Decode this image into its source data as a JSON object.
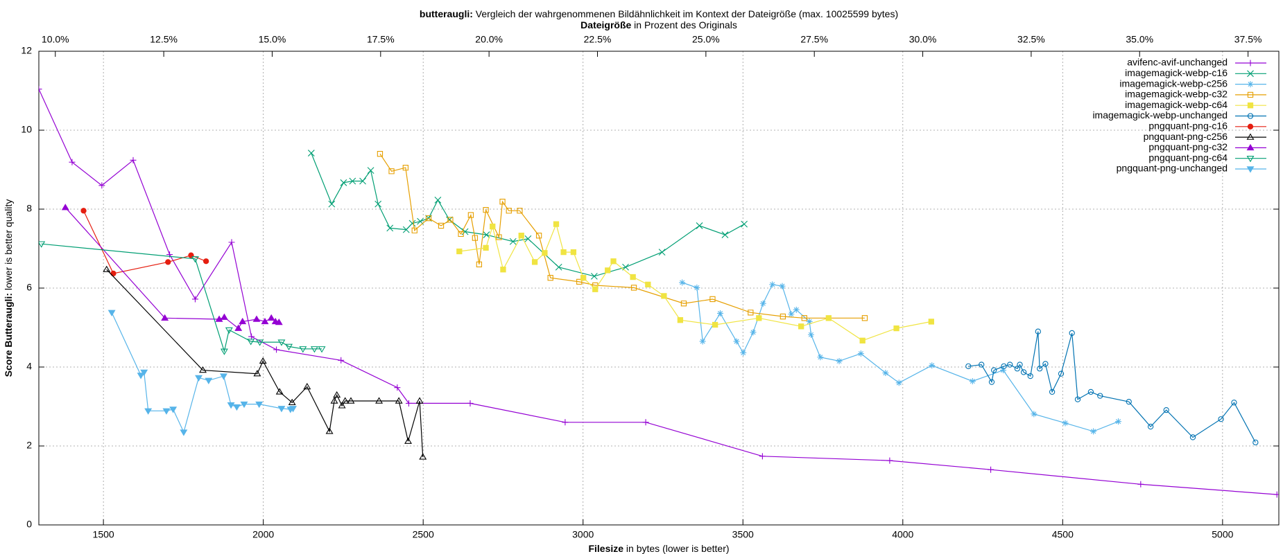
{
  "chart_data": {
    "type": "line",
    "title": {
      "bold": "butteraugli:",
      "rest": " Vergleich der wahrgenommenen Bildähnlichkeit im Kontext der Dateigröße (max. 10025599 bytes)"
    },
    "x2label": {
      "bold": "Dateigröße",
      "rest": " in Prozent des Originals"
    },
    "xlabel": {
      "bold": "Filesize",
      "rest": " in bytes (lower is better)"
    },
    "ylabel": {
      "bold": "Score Butteraugli:",
      "rest": " lower is better quality"
    },
    "xlim": [
      1298,
      5176
    ],
    "xticks": [
      1500,
      2000,
      2500,
      3000,
      3500,
      4000,
      4500,
      5000
    ],
    "x2lim": [
      9.62,
      38.21
    ],
    "x2ticks": [
      {
        "value": 10,
        "label": "10.0%"
      },
      {
        "value": 12.5,
        "label": "12.5%"
      },
      {
        "value": 15,
        "label": "15.0%"
      },
      {
        "value": 17.5,
        "label": "17.5%"
      },
      {
        "value": 20,
        "label": "20.0%"
      },
      {
        "value": 22.5,
        "label": "22.5%"
      },
      {
        "value": 25,
        "label": "25.0%"
      },
      {
        "value": 27.5,
        "label": "27.5%"
      },
      {
        "value": 30,
        "label": "30.0%"
      },
      {
        "value": 32.5,
        "label": "32.5%"
      },
      {
        "value": 35,
        "label": "35.0%"
      },
      {
        "value": 37.5,
        "label": "37.5%"
      }
    ],
    "ylim": [
      0,
      12
    ],
    "yticks": [
      0,
      2,
      4,
      6,
      8,
      10,
      12
    ],
    "grid": true,
    "legend": "top-right",
    "series": [
      {
        "name": "avifenc-avif-unchanged",
        "color": "#9400d3",
        "marker": "plus",
        "x": [
          1298,
          1402,
          1495,
          1593,
          1707,
          1787,
          1901,
          1963,
          2041,
          2243,
          2419,
          2455,
          2647,
          2944,
          3196,
          3561,
          3959,
          4275,
          4744,
          5170
        ],
        "values": [
          11.04,
          9.19,
          8.6,
          9.24,
          6.85,
          5.72,
          7.16,
          4.77,
          4.44,
          4.17,
          3.48,
          3.08,
          3.08,
          2.6,
          2.6,
          1.74,
          1.63,
          1.4,
          1.03,
          0.77
        ]
      },
      {
        "name": "imagemagick-webp-c16",
        "color": "#009e73",
        "marker": "cross",
        "x": [
          2150,
          2214,
          2251,
          2279,
          2311,
          2336,
          2359,
          2396,
          2447,
          2466,
          2491,
          2517,
          2546,
          2582,
          2631,
          2698,
          2781,
          2828,
          2924,
          3035,
          3133,
          3247,
          3364,
          3444,
          3504
        ],
        "values": [
          9.42,
          8.13,
          8.67,
          8.71,
          8.71,
          8.98,
          8.13,
          7.52,
          7.48,
          7.64,
          7.69,
          7.77,
          8.23,
          7.73,
          7.43,
          7.35,
          7.18,
          7.25,
          6.53,
          6.3,
          6.53,
          6.91,
          7.58,
          7.35,
          7.62
        ]
      },
      {
        "name": "imagemagick-webp-c256",
        "color": "#56b4e9",
        "marker": "star",
        "x": [
          3310,
          3356,
          3374,
          3429,
          3480,
          3501,
          3532,
          3563,
          3592,
          3623,
          3651,
          3667,
          3708,
          3713,
          3742,
          3801,
          3869,
          3946,
          3988,
          4091,
          4218,
          4314,
          4410,
          4508,
          4596,
          4674
        ],
        "values": [
          6.14,
          6.01,
          4.65,
          5.36,
          4.65,
          4.36,
          4.88,
          5.61,
          6.09,
          6.05,
          5.34,
          5.45,
          5.15,
          4.82,
          4.25,
          4.15,
          4.34,
          3.85,
          3.6,
          4.04,
          3.64,
          3.92,
          2.81,
          2.58,
          2.37,
          2.62
        ]
      },
      {
        "name": "imagemagick-webp-c32",
        "color": "#e69f00",
        "marker": "square",
        "x": [
          2365,
          2401,
          2445,
          2473,
          2517,
          2556,
          2585,
          2618,
          2649,
          2662,
          2675,
          2696,
          2737,
          2748,
          2768,
          2802,
          2862,
          2898,
          2988,
          3038,
          3159,
          3315,
          3405,
          3524,
          3625,
          3692,
          3881
        ],
        "values": [
          9.4,
          8.96,
          9.05,
          7.46,
          7.77,
          7.58,
          7.73,
          7.37,
          7.85,
          7.27,
          6.6,
          7.98,
          7.29,
          8.19,
          7.96,
          7.96,
          7.33,
          6.26,
          6.16,
          6.07,
          6.01,
          5.61,
          5.72,
          5.38,
          5.28,
          5.24,
          5.24
        ]
      },
      {
        "name": "imagemagick-webp-c64",
        "color": "#f0e442",
        "marker": "square-filled",
        "x": [
          2613,
          2696,
          2717,
          2750,
          2807,
          2849,
          2880,
          2916,
          2939,
          2970,
          3001,
          3038,
          3077,
          3095,
          3156,
          3203,
          3253,
          3304,
          3413,
          3550,
          3682,
          3768,
          3874,
          3980,
          4089
        ],
        "values": [
          6.93,
          7.02,
          7.56,
          6.47,
          7.33,
          6.66,
          6.89,
          7.62,
          6.91,
          6.91,
          6.26,
          5.97,
          6.45,
          6.68,
          6.28,
          6.09,
          5.8,
          5.19,
          5.07,
          5.24,
          5.03,
          5.24,
          4.67,
          4.98,
          5.15
        ]
      },
      {
        "name": "imagemagick-webp-unchanged",
        "color": "#0072b2",
        "marker": "circle",
        "x": [
          4205,
          4246,
          4278,
          4285,
          4316,
          4335,
          4358,
          4366,
          4378,
          4399,
          4423,
          4428,
          4446,
          4467,
          4495,
          4529,
          4547,
          4588,
          4617,
          4707,
          4775,
          4824,
          4907,
          4995,
          5036,
          5103
        ],
        "values": [
          4.02,
          4.06,
          3.62,
          3.92,
          4.02,
          4.06,
          3.96,
          4.06,
          3.87,
          3.77,
          4.9,
          3.96,
          4.08,
          3.37,
          3.83,
          4.86,
          3.18,
          3.37,
          3.27,
          3.12,
          2.49,
          2.91,
          2.22,
          2.68,
          3.1,
          2.09
        ]
      },
      {
        "name": "pngquant-png-c16",
        "color": "#e51e10",
        "marker": "circle-filled",
        "x": [
          1438,
          1531,
          1702,
          1774,
          1821
        ],
        "values": [
          7.96,
          6.37,
          6.66,
          6.83,
          6.68
        ]
      },
      {
        "name": "pngquant-png-c256",
        "color": "#000000",
        "marker": "triangle",
        "x": [
          1510,
          1811,
          1981,
          1999,
          2051,
          2090,
          2137,
          2207,
          2222,
          2230,
          2246,
          2256,
          2274,
          2362,
          2424,
          2453,
          2489,
          2499
        ],
        "values": [
          6.47,
          3.92,
          3.83,
          4.15,
          3.37,
          3.1,
          3.5,
          2.37,
          3.14,
          3.29,
          3.02,
          3.14,
          3.14,
          3.14,
          3.14,
          2.12,
          3.14,
          1.72
        ]
      },
      {
        "name": "pngquant-png-c32",
        "color": "#9400d3",
        "marker": "triangle-filled",
        "x": [
          1381,
          1692,
          1862,
          1878,
          1922,
          1935,
          1979,
          2005,
          2025,
          2038,
          2049
        ],
        "values": [
          8.04,
          5.24,
          5.21,
          5.26,
          4.98,
          5.15,
          5.21,
          5.15,
          5.24,
          5.15,
          5.13
        ]
      },
      {
        "name": "pngquant-png-c64",
        "color": "#009e73",
        "marker": "triangle-down",
        "x": [
          1306,
          1787,
          1878,
          1893,
          1961,
          1989,
          2057,
          2080,
          2124,
          2160,
          2183
        ],
        "values": [
          7.12,
          6.74,
          4.4,
          4.94,
          4.65,
          4.63,
          4.63,
          4.52,
          4.46,
          4.46,
          4.46
        ]
      },
      {
        "name": "pngquant-png-unchanged",
        "color": "#56b4e9",
        "marker": "triangle-down-filled",
        "x": [
          1526,
          1617,
          1627,
          1640,
          1697,
          1718,
          1751,
          1798,
          1829,
          1876,
          1899,
          1917,
          1940,
          1987,
          2057,
          2085,
          2093
        ],
        "values": [
          5.38,
          3.79,
          3.87,
          2.89,
          2.89,
          2.93,
          2.35,
          3.73,
          3.66,
          3.77,
          3.04,
          2.99,
          3.06,
          3.06,
          2.95,
          2.93,
          2.95
        ]
      }
    ]
  }
}
